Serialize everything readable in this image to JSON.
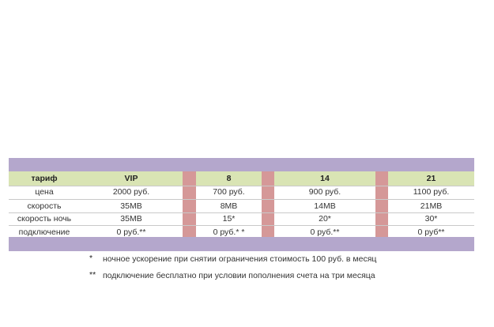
{
  "table": {
    "header": {
      "label": "тариф",
      "plans": [
        "VIP",
        "8",
        "14",
        "21"
      ]
    },
    "rows": [
      {
        "label": "цена",
        "values": [
          "2000 руб.",
          "700 руб.",
          "900 руб.",
          "1100 руб."
        ]
      },
      {
        "label": "скорость",
        "values": [
          "35МВ",
          "8МВ",
          "14МВ",
          "21МВ"
        ]
      },
      {
        "label": "скорость ночь",
        "values": [
          "35МВ",
          "15*",
          "20*",
          "30*"
        ]
      },
      {
        "label": "подключение",
        "values": [
          "0 руб.**",
          "0 руб.* *",
          "0 руб.**",
          "0 руб**"
        ]
      }
    ]
  },
  "notes": [
    {
      "mark": "*",
      "text": "ночное ускорение при снятии ограничения стоимость 100 руб. в месяц"
    },
    {
      "mark": "**",
      "text": "подключение бесплатно при условии пополнения счета на три месяца"
    }
  ],
  "colors": {
    "band": "#b4a7cc",
    "header_row": "#d9e4b4",
    "separator": "#d59898"
  }
}
